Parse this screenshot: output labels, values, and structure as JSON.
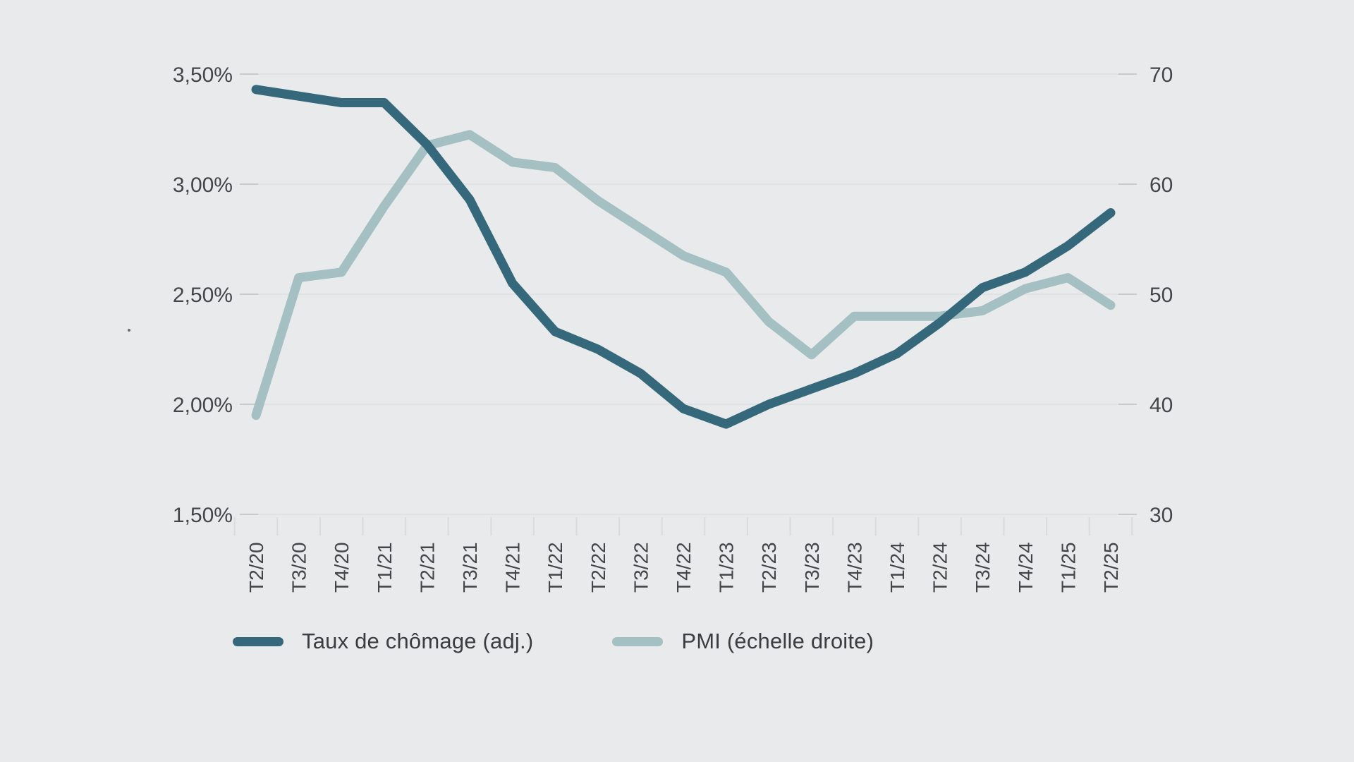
{
  "chart_data": {
    "type": "line",
    "categories": [
      "T2/20",
      "T3/20",
      "T4/20",
      "T1/21",
      "T2/21",
      "T3/21",
      "T4/21",
      "T1/22",
      "T2/22",
      "T3/22",
      "T4/22",
      "T1/23",
      "T2/23",
      "T3/23",
      "T4/23",
      "T1/24",
      "T2/24",
      "T3/24",
      "T4/24",
      "T1/25",
      "T2/25"
    ],
    "series": [
      {
        "name": "Taux de chômage (adj.)",
        "axis": "left",
        "color": "#35687b",
        "values": [
          3.43,
          3.4,
          3.37,
          3.37,
          3.18,
          2.93,
          2.55,
          2.33,
          2.25,
          2.14,
          1.98,
          1.91,
          2.0,
          2.07,
          2.14,
          2.23,
          2.37,
          2.53,
          2.6,
          2.72,
          2.87
        ]
      },
      {
        "name": "PMI (échelle droite)",
        "axis": "right",
        "color": "#a4c0c2",
        "values": [
          39,
          51.5,
          52,
          58,
          63.5,
          64.5,
          62,
          61.5,
          58.5,
          56,
          53.5,
          52,
          47.5,
          44.5,
          48,
          48,
          48,
          48.5,
          50.5,
          51.5,
          49
        ]
      }
    ],
    "left_axis": {
      "tick_labels": [
        "3,50%",
        "3,00%",
        "2,50%",
        "2,00%",
        "1,50%"
      ],
      "min": 1.5,
      "max": 3.5
    },
    "right_axis": {
      "tick_labels": [
        "70",
        "60",
        "50",
        "40",
        "30"
      ],
      "min": 30,
      "max": 70
    },
    "title": "",
    "xlabel": "",
    "ylabel": "",
    "grid": true,
    "legend_position": "bottom"
  },
  "legend": {
    "items": [
      {
        "label": "Taux de chômage (adj.)"
      },
      {
        "label": "PMI (échelle droite)"
      }
    ]
  },
  "colors": {
    "background": "#e8eaeb",
    "grid_line": "#dfe1e2",
    "grid_stub": "#c7cbcc",
    "x_tick_stub": "#d9dcdd",
    "axis_text": "#434648",
    "legend_text": "#3a3d3f"
  }
}
